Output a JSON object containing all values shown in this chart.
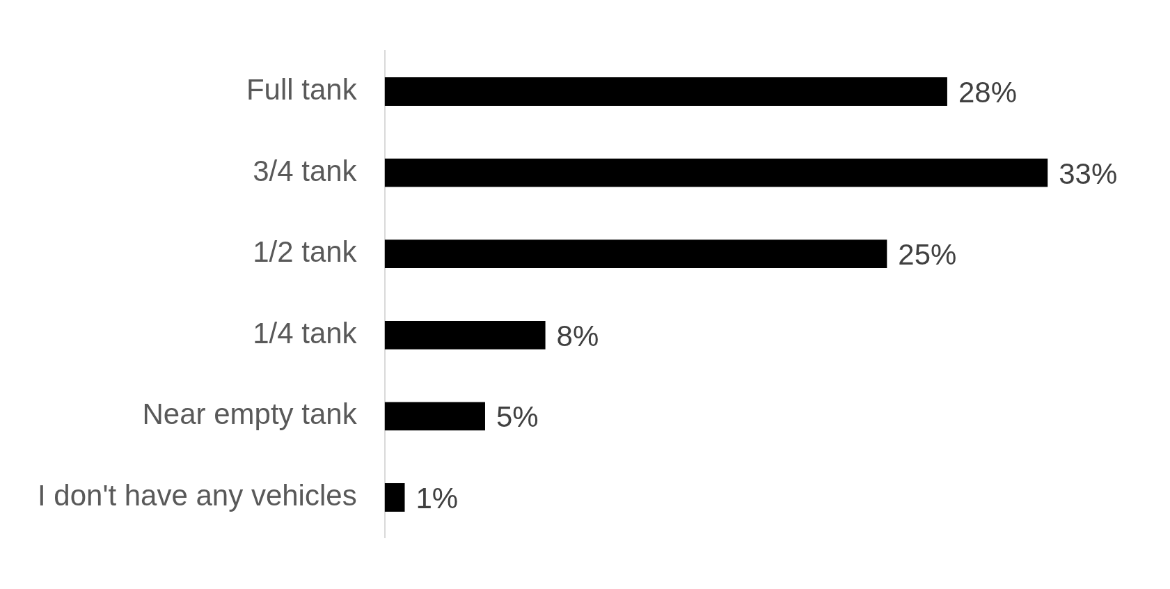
{
  "chart_data": {
    "type": "bar",
    "orientation": "horizontal",
    "categories": [
      "Full tank",
      "3/4 tank",
      "1/2 tank",
      "1/4 tank",
      "Near empty tank",
      "I don't have any vehicles"
    ],
    "values": [
      28,
      33,
      25,
      8,
      5,
      1
    ],
    "color": "#000000",
    "value_labels": [
      "28%",
      "33%",
      "25%",
      "8%",
      "5%",
      "1%"
    ],
    "tick_labels": "y"
  }
}
